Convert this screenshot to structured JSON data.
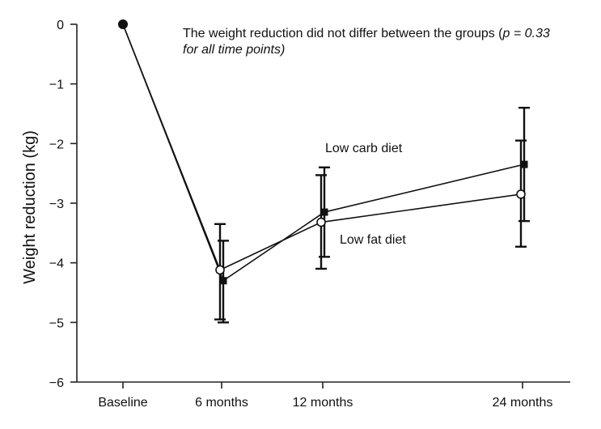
{
  "chart_data": {
    "type": "line",
    "title": "",
    "xlabel": "",
    "ylabel": "Weight reduction (kg)",
    "categories": [
      "Baseline",
      "6 months",
      "12 months",
      "24 months"
    ],
    "x_positions_months": [
      0,
      6,
      12,
      24
    ],
    "ylim": [
      -6,
      0
    ],
    "yticks": [
      0,
      -1,
      -2,
      -3,
      -4,
      -5,
      -6
    ],
    "ytick_labels": [
      "0",
      "−1",
      "−2",
      "−3",
      "−4",
      "−5",
      "−6"
    ],
    "grid": false,
    "legend": "none",
    "series": [
      {
        "name": "Low carb diet",
        "marker": "filled-square",
        "values": [
          0,
          -4.3,
          -3.15,
          -2.35
        ],
        "error_low": [
          0,
          -5.0,
          -3.9,
          -3.3
        ],
        "error_high": [
          0,
          -3.63,
          -2.4,
          -1.4
        ]
      },
      {
        "name": "Low fat diet",
        "marker": "open-circle",
        "values": [
          0,
          -4.12,
          -3.32,
          -2.85
        ],
        "error_low": [
          0,
          -4.95,
          -4.1,
          -3.73
        ],
        "error_high": [
          0,
          -3.35,
          -2.53,
          -1.95
        ]
      }
    ],
    "annotation": {
      "line1_pre": "The weight reduction did not differ between the groups (",
      "line1_p": "p = 0.33",
      "line2": "for all time points)"
    },
    "colors": {
      "line": "#111111",
      "axis": "#222222",
      "background": "#ffffff"
    }
  }
}
